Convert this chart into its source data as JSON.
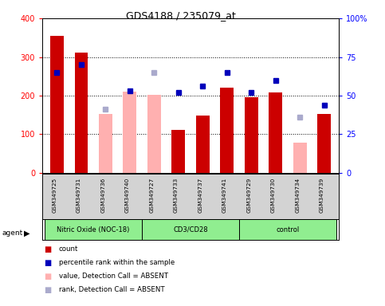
{
  "title": "GDS4188 / 235079_at",
  "samples": [
    "GSM349725",
    "GSM349731",
    "GSM349736",
    "GSM349740",
    "GSM349727",
    "GSM349733",
    "GSM349737",
    "GSM349741",
    "GSM349729",
    "GSM349730",
    "GSM349734",
    "GSM349739"
  ],
  "bar_values": [
    355,
    312,
    null,
    null,
    null,
    112,
    148,
    220,
    196,
    208,
    null,
    152
  ],
  "bar_absent_values": [
    null,
    null,
    152,
    210,
    202,
    null,
    null,
    null,
    null,
    null,
    78,
    null
  ],
  "percentile_values": [
    65,
    70,
    null,
    53,
    null,
    52,
    56,
    65,
    52,
    60,
    null,
    44
  ],
  "percentile_absent_values": [
    null,
    null,
    41,
    null,
    65,
    null,
    null,
    null,
    null,
    null,
    36,
    null
  ],
  "ylim": [
    0,
    400
  ],
  "y2lim": [
    0,
    100
  ],
  "yticks": [
    0,
    100,
    200,
    300,
    400
  ],
  "y2ticks": [
    0,
    25,
    50,
    75,
    100
  ],
  "y2ticklabels": [
    "0",
    "25",
    "50",
    "75",
    "100%"
  ],
  "bar_color": "#cc0000",
  "bar_absent_color": "#ffb0b0",
  "percentile_color": "#0000bb",
  "percentile_absent_color": "#aaaacc",
  "background_color": "#ffffff",
  "plot_bg": "#ffffff",
  "sample_bg": "#d3d3d3",
  "group_color": "#90ee90",
  "groups": [
    {
      "name": "Nitric Oxide (NOC-18)",
      "start": 0,
      "end": 3
    },
    {
      "name": "CD3/CD28",
      "start": 4,
      "end": 7
    },
    {
      "name": "control",
      "start": 8,
      "end": 11
    }
  ]
}
